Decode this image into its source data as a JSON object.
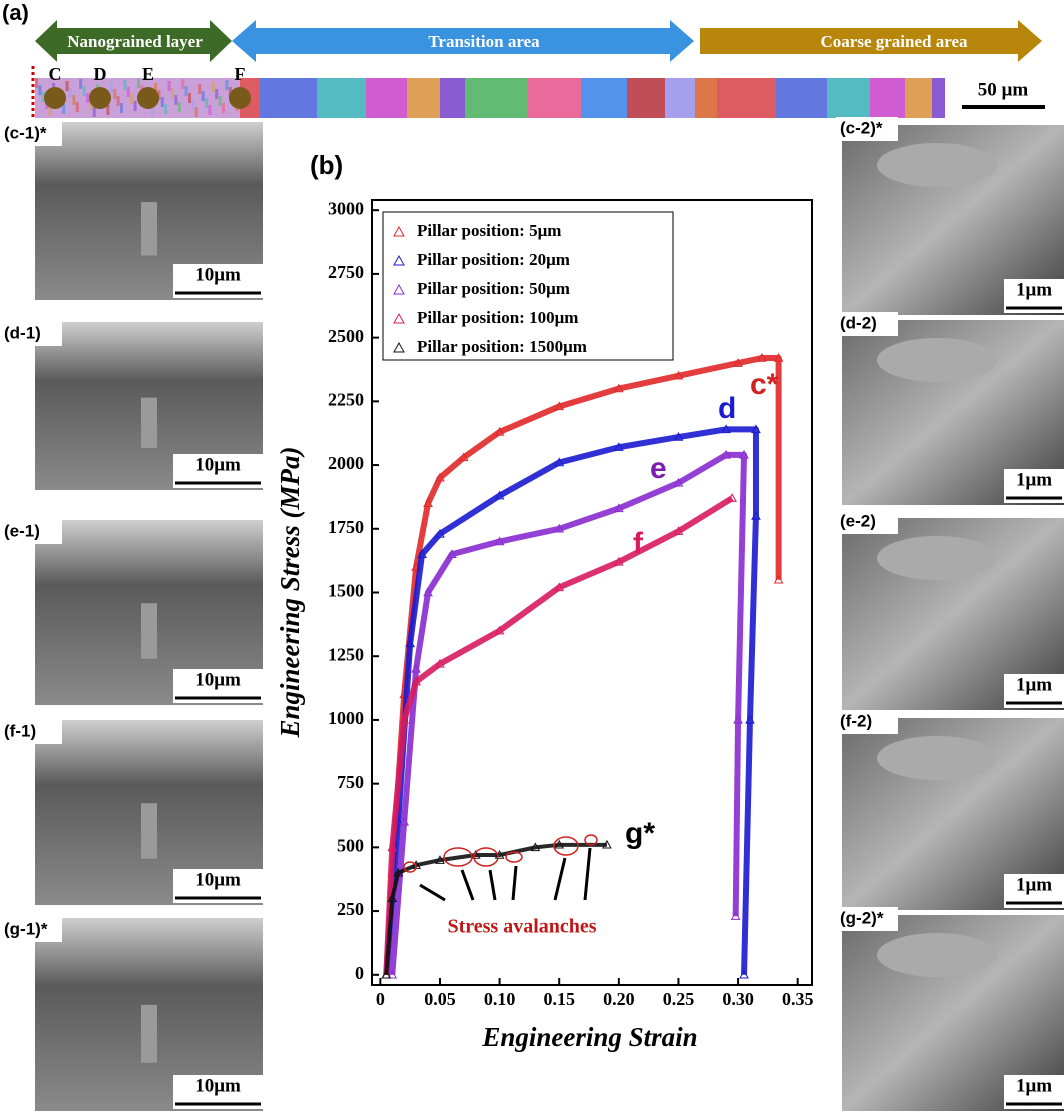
{
  "panel_a": {
    "label": "(a)",
    "zones": [
      "Nanograined  layer",
      "Transition area",
      "Coarse grained area"
    ],
    "markers": [
      "C",
      "D",
      "E",
      "F"
    ],
    "scale": "50 µm"
  },
  "images": [
    {
      "label": "(c-1)*",
      "scale": "10μm"
    },
    {
      "label": "(d-1)",
      "scale": "10μm"
    },
    {
      "label": "(e-1)",
      "scale": "10μm"
    },
    {
      "label": "(f-1)",
      "scale": "10μm"
    },
    {
      "label": "(g-1)*",
      "scale": "10μm"
    },
    {
      "label": "(c-2)*",
      "scale": "1μm"
    },
    {
      "label": "(d-2)",
      "scale": "1μm"
    },
    {
      "label": "(e-2)",
      "scale": "1μm"
    },
    {
      "label": "(f-2)",
      "scale": "1μm"
    },
    {
      "label": "(g-2)*",
      "scale": "1μm"
    }
  ],
  "chart_data": {
    "type": "line",
    "panel_label": "(b)",
    "x_label": "Engineering Strain",
    "y_label": "Engineering Stress (MPa)",
    "annotations": [
      "c*",
      "d",
      "e",
      "f",
      "g*",
      "Stress avalanches"
    ],
    "xlim": [
      -0.007,
      0.362
    ],
    "ylim": [
      -40,
      3040
    ],
    "xticks": [
      0,
      0.05,
      {
        "value": 0.1,
        "label": "0.10"
      },
      0.15,
      {
        "value": 0.2,
        "label": "0.20"
      },
      0.25,
      {
        "value": 0.3,
        "label": "0.30"
      },
      0.35
    ],
    "yticks": [
      0,
      250,
      500,
      750,
      1000,
      1250,
      1500,
      1750,
      2000,
      2250,
      2500,
      2750,
      3000
    ],
    "series": [
      {
        "name": "Pillar position: 5μm",
        "color": "#e02828",
        "x": [
          0.005,
          0.01,
          0.02,
          0.03,
          0.04,
          0.05,
          0.07,
          0.1,
          0.15,
          0.2,
          0.25,
          0.3,
          0.32,
          0.334,
          0.334
        ],
        "values": [
          0,
          400,
          1100,
          1600,
          1850,
          1950,
          2030,
          2130,
          2230,
          2300,
          2350,
          2400,
          2420,
          2420,
          1550
        ]
      },
      {
        "name": "Pillar position: 20μm",
        "color": "#1a1ad0",
        "x": [
          0.005,
          0.015,
          0.025,
          0.035,
          0.05,
          0.1,
          0.15,
          0.2,
          0.25,
          0.29,
          0.315,
          0.315,
          0.31,
          0.305
        ],
        "values": [
          0,
          600,
          1300,
          1650,
          1730,
          1880,
          2010,
          2070,
          2110,
          2140,
          2140,
          1800,
          1000,
          0
        ]
      },
      {
        "name": "Pillar position: 50μm",
        "color": "#8a2bd0",
        "x": [
          0.01,
          0.02,
          0.03,
          0.04,
          0.06,
          0.1,
          0.15,
          0.2,
          0.25,
          0.29,
          0.305,
          0.3,
          0.298
        ],
        "values": [
          0,
          600,
          1200,
          1500,
          1650,
          1700,
          1750,
          1830,
          1930,
          2040,
          2040,
          1000,
          230
        ]
      },
      {
        "name": "Pillar position: 100μm",
        "color": "#d81b60",
        "x": [
          0.005,
          0.01,
          0.02,
          0.03,
          0.05,
          0.1,
          0.15,
          0.2,
          0.25,
          0.295
        ],
        "values": [
          0,
          500,
          1000,
          1150,
          1220,
          1350,
          1520,
          1620,
          1740,
          1870
        ]
      },
      {
        "name": "Pillar position: 1500μm",
        "color": "#111111",
        "x": [
          0.005,
          0.01,
          0.015,
          0.03,
          0.05,
          0.08,
          0.1,
          0.13,
          0.15,
          0.19
        ],
        "values": [
          0,
          300,
          400,
          430,
          450,
          470,
          470,
          500,
          510,
          510
        ]
      }
    ]
  }
}
